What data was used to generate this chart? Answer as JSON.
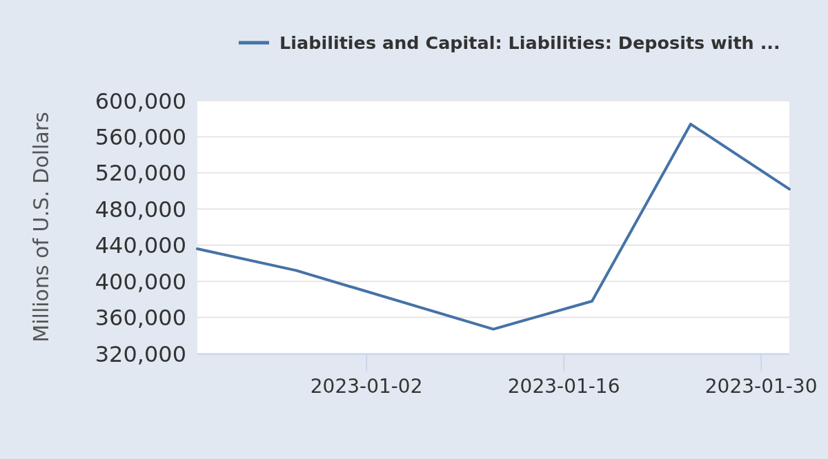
{
  "chart_data": {
    "type": "line",
    "x": [
      "2022-12-21",
      "2022-12-28",
      "2023-01-11",
      "2023-01-18",
      "2023-01-25",
      "2023-02-01"
    ],
    "series": [
      {
        "name": "Liabilities and Capital: Liabilities: Deposits with ...",
        "color": "#4572a7",
        "values": [
          436000,
          412000,
          347000,
          378000,
          574000,
          502000
        ]
      }
    ],
    "xlim": [
      "2022-12-21",
      "2023-02-01"
    ],
    "xticks": [
      "2023-01-02",
      "2023-01-16",
      "2023-01-30"
    ],
    "ylim": [
      320000,
      600000
    ],
    "yticks": [
      {
        "value": 320000,
        "label": "320,000"
      },
      {
        "value": 360000,
        "label": "360,000"
      },
      {
        "value": 400000,
        "label": "400,000"
      },
      {
        "value": 440000,
        "label": "440,000"
      },
      {
        "value": 480000,
        "label": "480,000"
      },
      {
        "value": 520000,
        "label": "520,000"
      },
      {
        "value": 560000,
        "label": "560,000"
      },
      {
        "value": 600000,
        "label": "600,000"
      }
    ],
    "ylabel": "Millions of U.S. Dollars",
    "grid": "y",
    "legend": "top",
    "line_style": "solid"
  }
}
